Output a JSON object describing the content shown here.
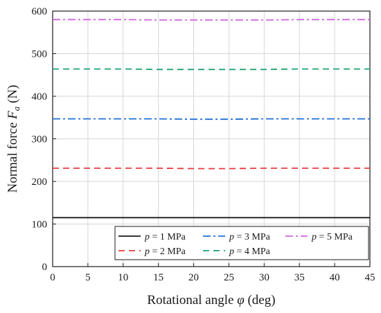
{
  "chart_data": {
    "type": "line",
    "xlabel_prefix": "Rotational angle ",
    "xlabel_symbol": "φ",
    "xlabel_suffix": " (deg)",
    "ylabel_prefix": "Normal force ",
    "ylabel_symbol": "F",
    "ylabel_subscript": "a",
    "ylabel_suffix": " (N)",
    "xlim": [
      0,
      45
    ],
    "ylim": [
      0,
      600
    ],
    "xticks": [
      0,
      5,
      10,
      15,
      20,
      25,
      30,
      35,
      40,
      45
    ],
    "yticks": [
      0,
      100,
      200,
      300,
      400,
      500,
      600
    ],
    "grid": true,
    "legend_placement": "bottom-right",
    "series": [
      {
        "name_symbol": "p",
        "name_rest": " = 1 MPa",
        "color": "#1a1a1a",
        "dash": "solid",
        "x": [
          0,
          5,
          10,
          15,
          20,
          25,
          30,
          35,
          40,
          45
        ],
        "y": [
          115,
          115,
          115,
          115,
          115,
          115,
          115,
          115,
          115,
          115
        ]
      },
      {
        "name_symbol": "p",
        "name_rest": " = 2 MPa",
        "color": "#e8383d",
        "dash": "dashed",
        "x": [
          0,
          5,
          10,
          15,
          20,
          25,
          30,
          35,
          40,
          45
        ],
        "y": [
          231,
          231,
          231,
          231,
          230,
          230,
          231,
          231,
          231,
          231
        ]
      },
      {
        "name_symbol": "p",
        "name_rest": " = 3 MPa",
        "color": "#1f6fd6",
        "dash": "dashdot",
        "x": [
          0,
          5,
          10,
          15,
          20,
          25,
          30,
          35,
          40,
          45
        ],
        "y": [
          347,
          347,
          347,
          347,
          346,
          346,
          347,
          347,
          347,
          347
        ]
      },
      {
        "name_symbol": "p",
        "name_rest": " = 4 MPa",
        "color": "#1aa36b",
        "dash": "dashed",
        "x": [
          0,
          5,
          10,
          15,
          20,
          25,
          30,
          35,
          40,
          45
        ],
        "y": [
          464,
          464,
          464,
          463,
          463,
          463,
          463,
          464,
          464,
          464
        ]
      },
      {
        "name_symbol": "p",
        "name_rest": " = 5 MPa",
        "color": "#cc66dd",
        "dash": "dashdot",
        "x": [
          0,
          5,
          10,
          15,
          20,
          25,
          30,
          35,
          40,
          45
        ],
        "y": [
          580,
          580,
          580,
          579,
          579,
          579,
          579,
          580,
          580,
          580
        ]
      }
    ]
  }
}
